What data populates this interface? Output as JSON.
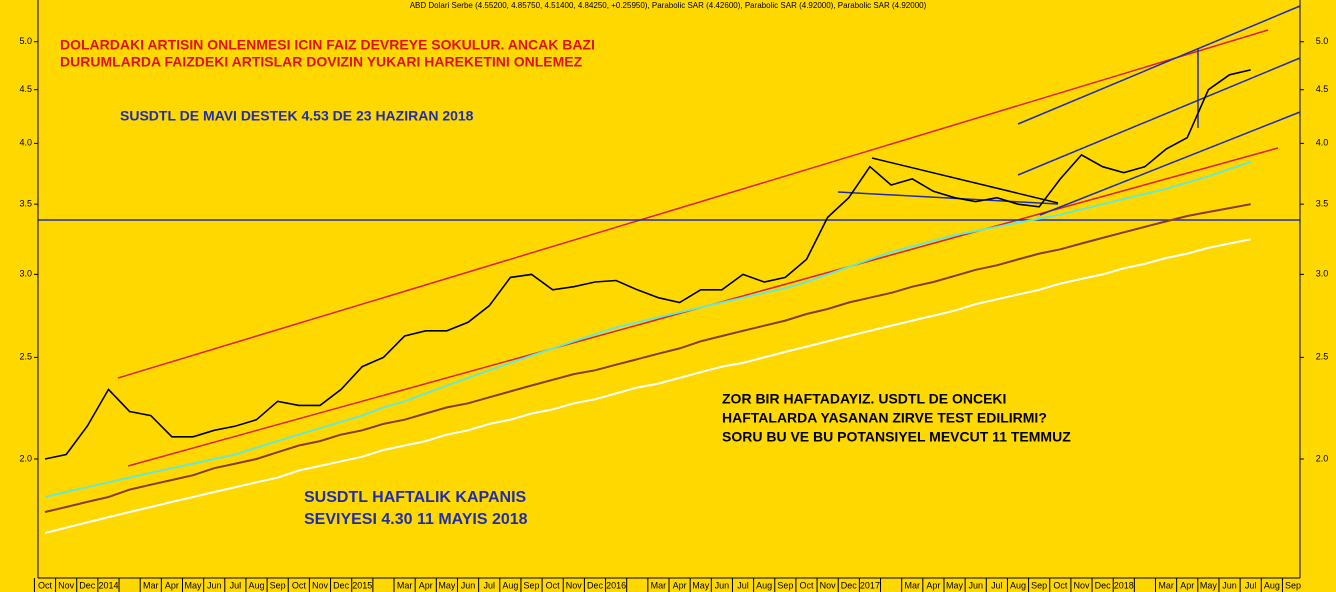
{
  "chart_data": {
    "type": "line",
    "title": "ABD Dolari Serbe (4.55200, 4.85750, 4.51400, 4.84250, +0.25950), Parabolic SAR (4.42600), Parabolic SAR (4.92000), Parabolic SAR (4.92000)",
    "annotations": [
      "DOLARDAKI ARTISIN ONLENMESI ICIN FAIZ DEVREYE SOKULUR. ANCAK BAZI",
      "DURUMLARDA FAIZDEKI ARTISLAR DOVIZIN YUKARI HAREKETINI ONLEMEZ",
      "SUSDTL DE MAVI DESTEK 4.53 DE 23 HAZIRAN 2018",
      "ZOR BIR HAFTADAYIZ. USDTL DE ONCEKI",
      "HAFTALARDA YASANAN ZIRVE TEST EDILIRMI?",
      "SORU BU VE BU POTANSIYEL MEVCUT 11 TEMMUZ",
      "SUSDTL HAFTALIK KAPANIS",
      "SEVIYESI 4.30 11 MAYIS 2018"
    ],
    "categories": [
      "Oct",
      "Nov",
      "Dec",
      "2014",
      null,
      "Mar",
      "Apr",
      "May",
      "Jun",
      "Jul",
      "Aug",
      "Sep",
      "Oct",
      "Nov",
      "Dec",
      "2015",
      null,
      "Mar",
      "Apr",
      "May",
      "Jun",
      "Jul",
      "Aug",
      "Sep",
      "Oct",
      "Nov",
      "Dec",
      "2016",
      null,
      "Mar",
      "Apr",
      "May",
      "Jun",
      "Jul",
      "Aug",
      "Sep",
      "Oct",
      "Nov",
      "Dec",
      "2017",
      null,
      "Mar",
      "Apr",
      "May",
      "Jun",
      "Jul",
      "Aug",
      "Sep",
      "Oct",
      "Nov",
      "Dec",
      "2018",
      null,
      "Mar",
      "Apr",
      "May",
      "Jun",
      "Jul",
      "Aug",
      "Sep"
    ],
    "series": [
      {
        "color": "#000000",
        "values": [
          2.0,
          2.02,
          2.15,
          2.33,
          2.22,
          2.2,
          2.1,
          2.1,
          2.13,
          2.15,
          2.18,
          2.27,
          2.25,
          2.25,
          2.33,
          2.45,
          2.5,
          2.62,
          2.65,
          2.65,
          2.7,
          2.8,
          2.98,
          3.0,
          2.9,
          2.92,
          2.95,
          2.96,
          2.9,
          2.85,
          2.82,
          2.9,
          2.9,
          3.0,
          2.95,
          2.98,
          3.1,
          3.4,
          3.55,
          3.8,
          3.65,
          3.7,
          3.6,
          3.55,
          3.52,
          3.55,
          3.5,
          3.48,
          3.7,
          3.9,
          3.8,
          3.75,
          3.8,
          3.95,
          4.05,
          4.5,
          4.65,
          4.7,
          null,
          null
        ]
      },
      {
        "color": "#66e8d2",
        "values": [
          1.84,
          1.86,
          1.88,
          1.9,
          1.92,
          1.94,
          1.96,
          1.98,
          2.0,
          2.02,
          2.05,
          2.08,
          2.11,
          2.14,
          2.17,
          2.2,
          2.24,
          2.27,
          2.31,
          2.35,
          2.39,
          2.43,
          2.47,
          2.51,
          2.55,
          2.59,
          2.63,
          2.67,
          2.7,
          2.73,
          2.76,
          2.79,
          2.82,
          2.85,
          2.88,
          2.91,
          2.95,
          3.0,
          3.05,
          3.1,
          3.15,
          3.19,
          3.23,
          3.27,
          3.3,
          3.33,
          3.36,
          3.39,
          3.42,
          3.46,
          3.5,
          3.54,
          3.58,
          3.62,
          3.67,
          3.72,
          3.78,
          3.84,
          null,
          null
        ]
      },
      {
        "color": "#8b3a1a",
        "values": [
          1.78,
          1.8,
          1.82,
          1.84,
          1.87,
          1.89,
          1.91,
          1.93,
          1.96,
          1.98,
          2.0,
          2.03,
          2.06,
          2.08,
          2.11,
          2.13,
          2.16,
          2.18,
          2.21,
          2.24,
          2.26,
          2.29,
          2.32,
          2.35,
          2.38,
          2.41,
          2.43,
          2.46,
          2.49,
          2.52,
          2.55,
          2.59,
          2.62,
          2.65,
          2.68,
          2.71,
          2.75,
          2.78,
          2.82,
          2.85,
          2.88,
          2.92,
          2.95,
          2.99,
          3.03,
          3.06,
          3.1,
          3.14,
          3.17,
          3.21,
          3.25,
          3.29,
          3.33,
          3.37,
          3.41,
          3.44,
          3.47,
          3.5,
          null,
          null
        ]
      },
      {
        "color": "#ffffff",
        "values": [
          1.7,
          1.72,
          1.74,
          1.76,
          1.78,
          1.8,
          1.82,
          1.84,
          1.86,
          1.88,
          1.9,
          1.92,
          1.95,
          1.97,
          1.99,
          2.01,
          2.04,
          2.06,
          2.08,
          2.11,
          2.13,
          2.16,
          2.18,
          2.21,
          2.23,
          2.26,
          2.28,
          2.31,
          2.34,
          2.36,
          2.39,
          2.42,
          2.45,
          2.47,
          2.5,
          2.53,
          2.56,
          2.59,
          2.62,
          2.65,
          2.68,
          2.71,
          2.74,
          2.77,
          2.81,
          2.84,
          2.87,
          2.9,
          2.94,
          2.97,
          3.0,
          3.04,
          3.07,
          3.11,
          3.14,
          3.18,
          3.21,
          3.24,
          null,
          null
        ]
      }
    ],
    "reference_line": 3.38,
    "reference_color": "#1f2ea8",
    "log_scale": true,
    "ylim": [
      1.54,
      5.48
    ],
    "yticks": [
      {
        "value": 2,
        "label": "2.0"
      },
      2.5,
      {
        "value": 3,
        "label": "3.0"
      },
      3.5,
      {
        "value": 4,
        "label": "4.0"
      },
      4.5,
      {
        "value": 5,
        "label": "5.0"
      }
    ]
  }
}
